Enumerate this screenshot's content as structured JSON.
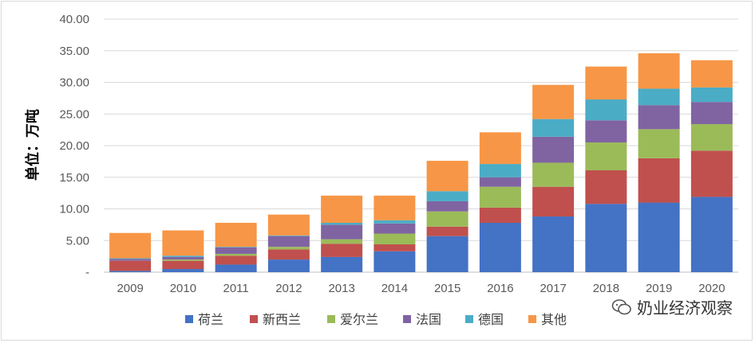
{
  "chart_data": {
    "type": "bar",
    "stacked": true,
    "title": "",
    "ylabel": "单位：万吨",
    "xlabel": "",
    "ylim": [
      0,
      40
    ],
    "y_ticks": [
      "-",
      "5.00",
      "10.00",
      "15.00",
      "20.00",
      "25.00",
      "30.00",
      "35.00",
      "40.00"
    ],
    "grid": true,
    "legend_position": "bottom",
    "categories": [
      "2009",
      "2010",
      "2011",
      "2012",
      "2013",
      "2014",
      "2015",
      "2016",
      "2017",
      "2018",
      "2019",
      "2020"
    ],
    "series": [
      {
        "name": "荷兰",
        "color": "#4472C4",
        "values": [
          0.2,
          0.5,
          1.2,
          2.0,
          2.4,
          3.3,
          5.7,
          7.8,
          8.8,
          10.8,
          11.0,
          11.9
        ]
      },
      {
        "name": "新西兰",
        "color": "#C0504D",
        "values": [
          1.6,
          1.3,
          1.4,
          1.6,
          2.1,
          1.1,
          1.5,
          2.4,
          4.7,
          5.3,
          7.0,
          7.3
        ]
      },
      {
        "name": "爱尔兰",
        "color": "#9BBB59",
        "values": [
          0.0,
          0.2,
          0.3,
          0.4,
          0.7,
          1.7,
          2.4,
          3.3,
          3.8,
          4.4,
          4.6,
          4.2
        ]
      },
      {
        "name": "法国",
        "color": "#8064A2",
        "values": [
          0.3,
          0.4,
          1.0,
          1.7,
          2.3,
          1.6,
          1.6,
          1.5,
          4.1,
          3.5,
          3.8,
          3.5
        ]
      },
      {
        "name": "德国",
        "color": "#4BACC6",
        "values": [
          0.1,
          0.2,
          0.1,
          0.1,
          0.3,
          0.5,
          1.6,
          2.1,
          2.8,
          3.3,
          2.6,
          2.3
        ]
      },
      {
        "name": "其他",
        "color": "#F79646",
        "values": [
          4.0,
          4.0,
          3.8,
          3.3,
          4.3,
          3.9,
          4.8,
          5.0,
          5.4,
          5.2,
          5.6,
          4.3
        ]
      }
    ]
  },
  "watermark": {
    "text": "奶业经济观察",
    "icon": "wechat-icon"
  }
}
